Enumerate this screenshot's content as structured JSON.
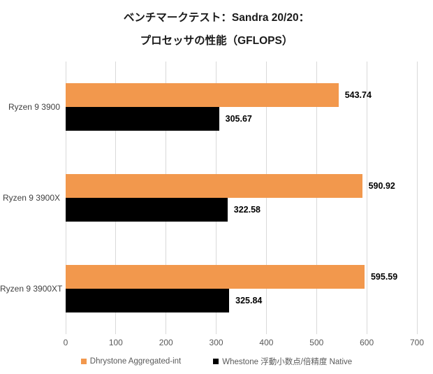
{
  "title": {
    "line1": "ベンチマークテスト：Sandra 20/20：",
    "line2": "プロセッサの性能（GFLOPS）"
  },
  "colors": {
    "series1": "#f2984d",
    "series2": "#000000",
    "gridline": "#d9d9d9",
    "axis_text": "#595959",
    "category_text": "#3f3f3f",
    "value_text": "#000000",
    "title_text": "#1a1a1a",
    "background": "#ffffff"
  },
  "chart_data": {
    "type": "bar",
    "orientation": "horizontal",
    "title": "ベンチマークテスト：Sandra 20/20：プロセッサの性能（GFLOPS）",
    "categories": [
      "Ryzen 9 3900",
      "Ryzen 9 3900X",
      "Ryzen 9 3900XT"
    ],
    "series": [
      {
        "name": "Dhrystone Aggregated-int",
        "color": "#f2984d",
        "values": [
          543.74,
          590.92,
          595.59
        ]
      },
      {
        "name": "Whestone 浮動小数点/倍精度 Native",
        "color": "#000000",
        "values": [
          305.67,
          322.58,
          325.84
        ]
      }
    ],
    "value_labels": [
      "543.74",
      "305.67",
      "590.92",
      "322.58",
      "595.59",
      "325.84"
    ],
    "xlabel": "",
    "ylabel": "",
    "xlim": [
      0,
      700
    ],
    "x_ticks": [
      0,
      100,
      200,
      300,
      400,
      500,
      600,
      700
    ],
    "grid": true,
    "legend_position": "bottom"
  }
}
